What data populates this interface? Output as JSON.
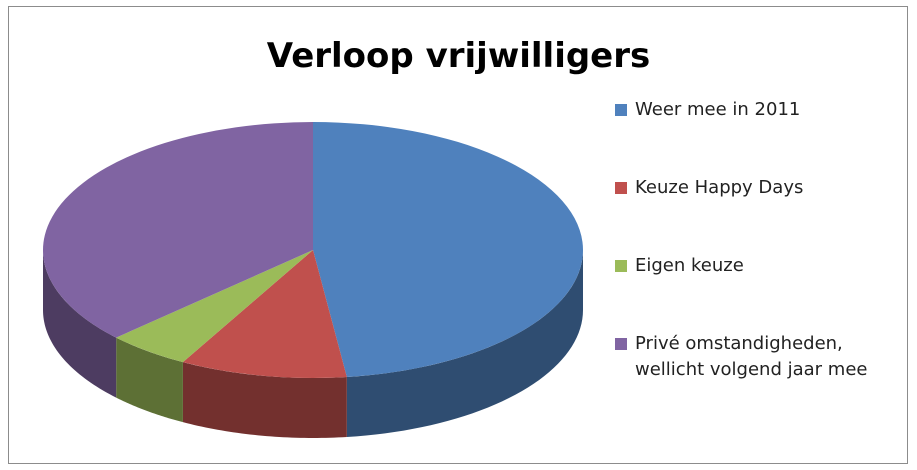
{
  "chart_data": {
    "type": "pie",
    "title": "Verloop vrijwilligers",
    "categories": [
      "Weer mee in 2011",
      "Keuze Happy Days",
      "Eigen keuze",
      "Privé omstandigheden, wellicht volgend jaar mee"
    ],
    "values": [
      48,
      10,
      5,
      37
    ],
    "colors": [
      "#4f81bd",
      "#c0504d",
      "#9bbb59",
      "#8064a2"
    ],
    "legend": "right"
  }
}
